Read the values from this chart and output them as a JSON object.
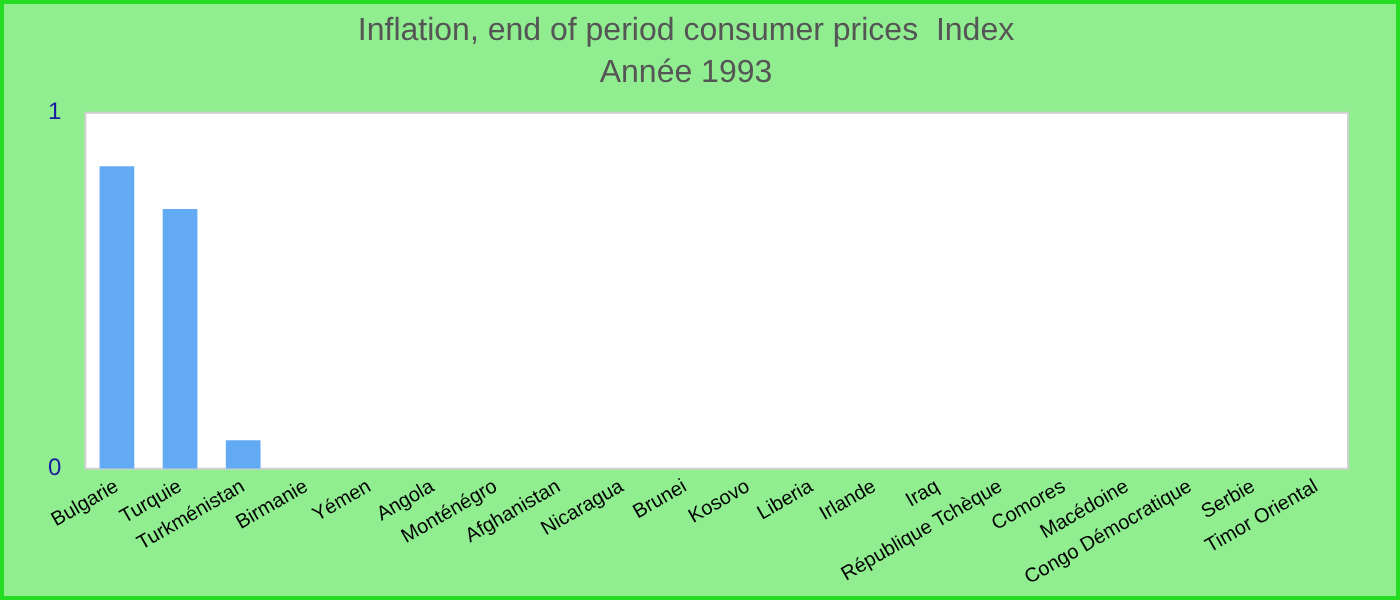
{
  "chart_data": {
    "type": "bar",
    "title": "Inflation, end of period consumer prices  Index",
    "subtitle": "Année 1993",
    "categories": [
      "Bulgarie",
      "Turquie",
      "Turkménistan",
      "Birmanie",
      "Yémen",
      "Angola",
      "Monténégro",
      "Afghanistan",
      "Nicaragua",
      "Brunei",
      "Kosovo",
      "Liberia",
      "Irlande",
      "Iraq",
      "République Tchèque",
      "Comores",
      "Macédoine",
      "Congo Démocratique",
      "Serbie",
      "Timor Oriental"
    ],
    "values": [
      0.85,
      0.73,
      0.08,
      0,
      0,
      0,
      0,
      0,
      0,
      0,
      0,
      0,
      0,
      0,
      0,
      0,
      0,
      0,
      0,
      0
    ],
    "color": "#63aaf5",
    "ylim": [
      0,
      1
    ],
    "yticks": [
      0,
      1
    ],
    "grid": false,
    "legend": false
  }
}
